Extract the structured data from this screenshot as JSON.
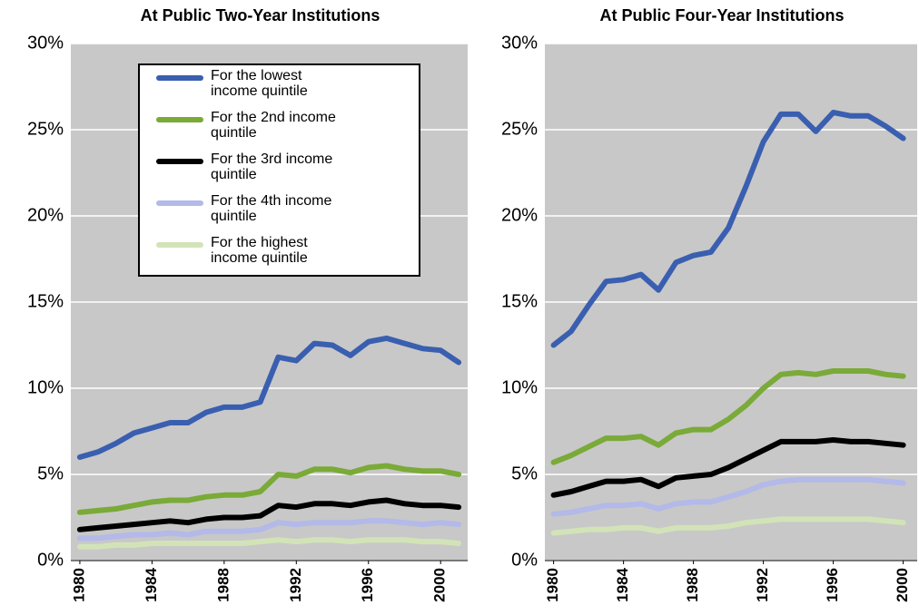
{
  "chart_data": [
    {
      "type": "line",
      "title": "At Public Two-Year Institutions",
      "x": [
        1980,
        1981,
        1982,
        1983,
        1984,
        1985,
        1986,
        1987,
        1988,
        1989,
        1990,
        1991,
        1992,
        1993,
        1994,
        1995,
        1996,
        1997,
        1998,
        1999,
        2000,
        2001
      ],
      "xlim": [
        1979.5,
        2001.5
      ],
      "xticks": [
        1980,
        1984,
        1988,
        1992,
        1996,
        2000
      ],
      "ylim": [
        0,
        30
      ],
      "yticks": [
        {
          "value": 0,
          "label": "0%"
        },
        {
          "value": 5,
          "label": "5%"
        },
        {
          "value": 10,
          "label": "10%"
        },
        {
          "value": 15,
          "label": "15%"
        },
        {
          "value": 20,
          "label": "20%"
        },
        {
          "value": 25,
          "label": "25%"
        },
        {
          "value": 30,
          "label": "30%"
        }
      ],
      "grid": true,
      "legend": "upper center",
      "series": [
        {
          "name": "For the lowest income quintile",
          "color": "#3a5fb0",
          "values": [
            6.0,
            6.3,
            6.8,
            7.4,
            7.7,
            8.0,
            8.0,
            8.6,
            8.9,
            8.9,
            9.2,
            11.8,
            11.6,
            12.6,
            12.5,
            11.9,
            12.7,
            12.9,
            12.6,
            12.3,
            12.2,
            11.5
          ]
        },
        {
          "name": "For the 2nd income quintile",
          "color": "#7aaa38",
          "values": [
            2.8,
            2.9,
            3.0,
            3.2,
            3.4,
            3.5,
            3.5,
            3.7,
            3.8,
            3.8,
            4.0,
            5.0,
            4.9,
            5.3,
            5.3,
            5.1,
            5.4,
            5.5,
            5.3,
            5.2,
            5.2,
            5.0
          ]
        },
        {
          "name": "For the 3rd income quintile",
          "color": "#000000",
          "values": [
            1.8,
            1.9,
            2.0,
            2.1,
            2.2,
            2.3,
            2.2,
            2.4,
            2.5,
            2.5,
            2.6,
            3.2,
            3.1,
            3.3,
            3.3,
            3.2,
            3.4,
            3.5,
            3.3,
            3.2,
            3.2,
            3.1
          ]
        },
        {
          "name": "For the 4th income quintile",
          "color": "#b3b9e8",
          "values": [
            1.3,
            1.3,
            1.4,
            1.5,
            1.5,
            1.6,
            1.5,
            1.7,
            1.7,
            1.7,
            1.8,
            2.2,
            2.1,
            2.2,
            2.2,
            2.2,
            2.3,
            2.3,
            2.2,
            2.1,
            2.2,
            2.1
          ]
        },
        {
          "name": "For the highest income quintile",
          "color": "#d3e3b8",
          "values": [
            0.8,
            0.8,
            0.9,
            0.9,
            1.0,
            1.0,
            1.0,
            1.0,
            1.0,
            1.0,
            1.1,
            1.2,
            1.1,
            1.2,
            1.2,
            1.1,
            1.2,
            1.2,
            1.2,
            1.1,
            1.1,
            1.0
          ]
        }
      ]
    },
    {
      "type": "line",
      "title": "At Public Four-Year Institutions",
      "x": [
        1980,
        1981,
        1982,
        1983,
        1984,
        1985,
        1986,
        1987,
        1988,
        1989,
        1990,
        1991,
        1992,
        1993,
        1994,
        1995,
        1996,
        1997,
        1998,
        1999,
        2000
      ],
      "xlim": [
        1979.5,
        2000.8
      ],
      "xticks": [
        1980,
        1984,
        1988,
        1992,
        1996,
        2000
      ],
      "ylim": [
        0,
        30
      ],
      "yticks": [
        {
          "value": 0,
          "label": "0%"
        },
        {
          "value": 5,
          "label": "5%"
        },
        {
          "value": 10,
          "label": "10%"
        },
        {
          "value": 15,
          "label": "15%"
        },
        {
          "value": 20,
          "label": "20%"
        },
        {
          "value": 25,
          "label": "25%"
        },
        {
          "value": 30,
          "label": "30%"
        }
      ],
      "grid": true,
      "series": [
        {
          "color": "#3a5fb0",
          "values": [
            12.5,
            13.3,
            14.8,
            16.2,
            16.3,
            16.6,
            15.7,
            17.3,
            17.7,
            17.9,
            19.3,
            21.7,
            24.3,
            25.9,
            25.9,
            24.9,
            26.0,
            25.8,
            25.8,
            25.2,
            24.5
          ]
        },
        {
          "color": "#7aaa38",
          "values": [
            5.7,
            6.1,
            6.6,
            7.1,
            7.1,
            7.2,
            6.7,
            7.4,
            7.6,
            7.6,
            8.2,
            9.0,
            10.0,
            10.8,
            10.9,
            10.8,
            11.0,
            11.0,
            11.0,
            10.8,
            10.7
          ]
        },
        {
          "color": "#000000",
          "values": [
            3.8,
            4.0,
            4.3,
            4.6,
            4.6,
            4.7,
            4.3,
            4.8,
            4.9,
            5.0,
            5.4,
            5.9,
            6.4,
            6.9,
            6.9,
            6.9,
            7.0,
            6.9,
            6.9,
            6.8,
            6.7
          ]
        },
        {
          "color": "#b3b9e8",
          "values": [
            2.7,
            2.8,
            3.0,
            3.2,
            3.2,
            3.3,
            3.0,
            3.3,
            3.4,
            3.4,
            3.7,
            4.0,
            4.4,
            4.6,
            4.7,
            4.7,
            4.7,
            4.7,
            4.7,
            4.6,
            4.5
          ]
        },
        {
          "color": "#d3e3b8",
          "values": [
            1.6,
            1.7,
            1.8,
            1.8,
            1.9,
            1.9,
            1.7,
            1.9,
            1.9,
            1.9,
            2.0,
            2.2,
            2.3,
            2.4,
            2.4,
            2.4,
            2.4,
            2.4,
            2.4,
            2.3,
            2.2
          ]
        }
      ]
    }
  ]
}
